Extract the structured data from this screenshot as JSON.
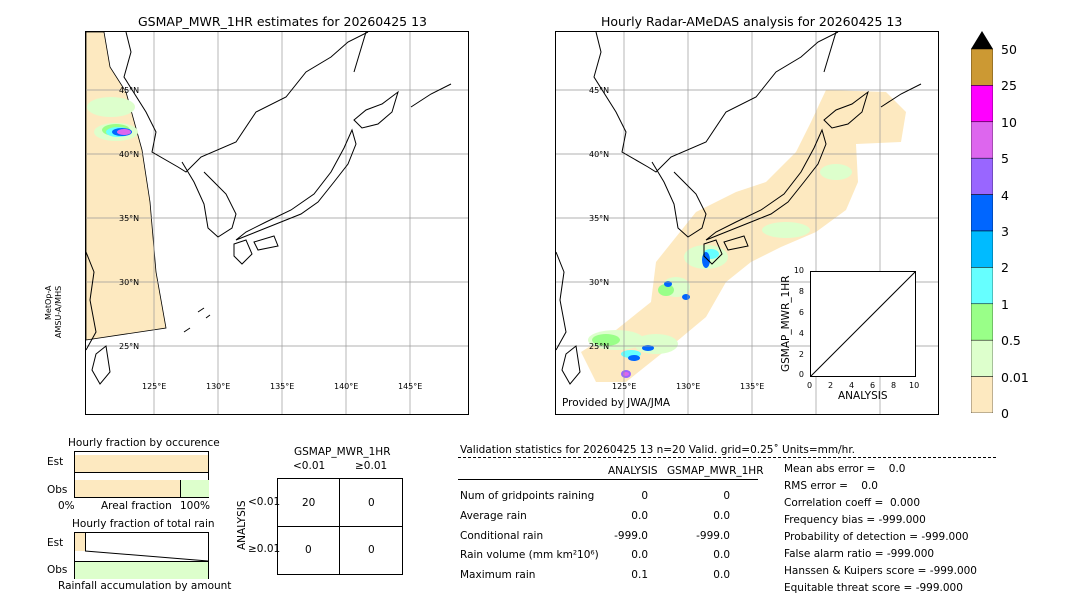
{
  "left_map": {
    "title": "GSMAP_MWR_1HR estimates for 20260425 13",
    "lat_labels": [
      "45°N",
      "40°N",
      "35°N",
      "30°N",
      "25°N"
    ],
    "lon_labels": [
      "125°E",
      "130°E",
      "135°E",
      "140°E",
      "145°E"
    ],
    "side_label_1": "MetOp-A",
    "side_label_2": "AMSU-A/MHS"
  },
  "right_map": {
    "title": "Hourly Radar-AMeDAS analysis for 20260425 13",
    "lat_labels": [
      "45°N",
      "40°N",
      "35°N",
      "30°N",
      "25°N"
    ],
    "lon_labels": [
      "125°E",
      "130°E",
      "135°E"
    ],
    "credit": "Provided by JWA/JMA"
  },
  "scatter_inset": {
    "ylabel": "GSMAP_MWR_1HR",
    "xlabel": "ANALYSIS",
    "ticks": [
      "0",
      "2",
      "4",
      "6",
      "8",
      "10"
    ]
  },
  "colorbar": {
    "labels": [
      "50",
      "25",
      "10",
      "5",
      "4",
      "3",
      "2",
      "1",
      "0.5",
      "0.01",
      "0"
    ],
    "colors": [
      "#cc9933",
      "#ff00ff",
      "#dd66ee",
      "#9966ff",
      "#0066ff",
      "#00bbff",
      "#66ffff",
      "#99ff88",
      "#ddffcc",
      "#fde9c0"
    ],
    "overflow_color": "#000000"
  },
  "occurrence_chart": {
    "title": "Hourly fraction by occurence",
    "row_labels": [
      "Est",
      "Obs"
    ],
    "axis_left": "0%",
    "axis_mid": "Areal fraction",
    "axis_right": "100%",
    "est_fraction": 1.0,
    "obs_fraction": 0.79
  },
  "rain_chart": {
    "title": "Hourly fraction of total rain",
    "row_labels": [
      "Est",
      "Obs"
    ],
    "axis_mid": "Rainfall accumulation by amount"
  },
  "contingency": {
    "title": "GSMAP_MWR_1HR",
    "col_headers": [
      "<0.01",
      "≥0.01"
    ],
    "row_axis": "ANALYSIS",
    "row_headers": [
      "<0.01",
      "≥0.01"
    ],
    "cells": [
      "20",
      "0",
      "0",
      "0"
    ]
  },
  "validation": {
    "header": "Validation statistics for 20260425 13  n=20 Valid. grid=0.25˚ Units=mm/hr.",
    "col_analysis": "ANALYSIS",
    "col_gsmap": "GSMAP_MWR_1HR",
    "rows": [
      {
        "label": "Num of gridpoints raining",
        "analysis": "0",
        "gsmap": "0"
      },
      {
        "label": "Average rain",
        "analysis": "0.0",
        "gsmap": "0.0"
      },
      {
        "label": "Conditional rain",
        "analysis": "-999.0",
        "gsmap": "-999.0"
      },
      {
        "label": "Rain volume (mm km²10⁶)",
        "analysis": "0.0",
        "gsmap": "0.0"
      },
      {
        "label": "Maximum rain",
        "analysis": "0.1",
        "gsmap": "0.0"
      }
    ],
    "scores": [
      "Mean abs error =    0.0",
      "RMS error =    0.0",
      "Correlation coeff =  0.000",
      "Frequency bias = -999.000",
      "Probability of detection = -999.000",
      "False alarm ratio = -999.000",
      "Hanssen & Kuipers score = -999.000",
      "Equitable threat score = -999.000"
    ]
  }
}
